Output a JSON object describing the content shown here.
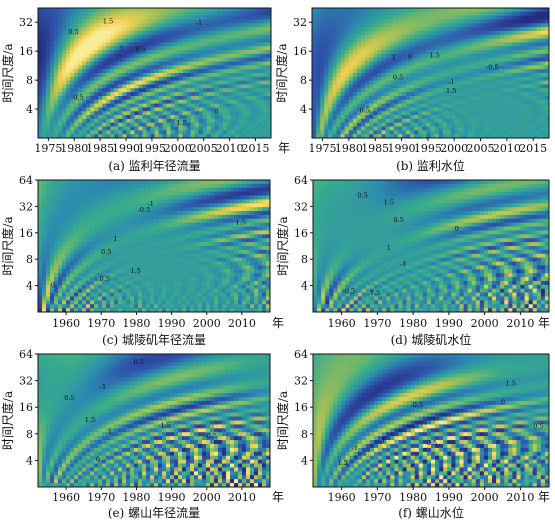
{
  "chart_data": [
    {
      "type": "heatmap",
      "caption": "(a) 监利年径流量",
      "ylabel": "时间尺度/a",
      "xunit": "年",
      "xticks": [
        1975,
        1980,
        1985,
        1990,
        1995,
        2000,
        2005,
        2010,
        2015
      ],
      "yticks": [
        4,
        8,
        16,
        32
      ],
      "xlim": [
        1973,
        2018
      ],
      "ylim": [
        2,
        45
      ],
      "yscale": "log2",
      "contour_labels": [
        "1.5",
        "0.5",
        "0",
        "-0.5",
        "-1",
        "1"
      ],
      "palette": {
        "low": "#2d3c9b",
        "mid": "#3aa98c",
        "high": "#f0d848"
      }
    },
    {
      "type": "heatmap",
      "caption": "(b) 监利水位",
      "ylabel": "时间尺度/a",
      "xunit": "",
      "xticks": [
        1975,
        1980,
        1985,
        1990,
        1995,
        2000,
        2005,
        2010,
        2015
      ],
      "yticks": [
        4,
        8,
        16,
        32
      ],
      "xlim": [
        1973,
        2018
      ],
      "ylim": [
        2,
        45
      ],
      "yscale": "log2",
      "contour_labels": [
        "1.5",
        "0.5",
        "0",
        "-0.5",
        "-1",
        "1"
      ],
      "palette": {
        "low": "#2d3c9b",
        "mid": "#3aa98c",
        "high": "#f0d848"
      }
    },
    {
      "type": "heatmap",
      "caption": "(c) 城陵矶年径流量",
      "ylabel": "时间尺度/a",
      "xunit": "年",
      "xticks": [
        1960,
        1970,
        1980,
        1990,
        2000,
        2010
      ],
      "yticks": [
        4,
        8,
        16,
        32,
        64
      ],
      "xlim": [
        1952,
        2018
      ],
      "ylim": [
        2,
        64
      ],
      "yscale": "log2",
      "contour_labels": [
        "1.5",
        "0.5",
        "0",
        "-0.5",
        "-1",
        "1"
      ],
      "palette": {
        "low": "#2d3c9b",
        "mid": "#3aa98c",
        "high": "#f0d848"
      }
    },
    {
      "type": "heatmap",
      "caption": "(d) 城陵矶水位",
      "ylabel": "时间尺度/a",
      "xunit": "年",
      "xticks": [
        1960,
        1970,
        1980,
        1990,
        2000,
        2010
      ],
      "yticks": [
        4,
        8,
        16,
        32,
        64
      ],
      "xlim": [
        1952,
        2018
      ],
      "ylim": [
        2,
        64
      ],
      "yscale": "log2",
      "contour_labels": [
        "1.5",
        "0.5",
        "0",
        "-0.5",
        "-1",
        "1"
      ],
      "palette": {
        "low": "#2d3c9b",
        "mid": "#3aa98c",
        "high": "#f0d848"
      }
    },
    {
      "type": "heatmap",
      "caption": "(e) 螺山年径流量",
      "ylabel": "时间尺度/a",
      "xunit": "年",
      "xticks": [
        1960,
        1970,
        1980,
        1990,
        2000,
        2010
      ],
      "yticks": [
        4,
        8,
        16,
        32,
        64
      ],
      "xlim": [
        1952,
        2018
      ],
      "ylim": [
        2,
        64
      ],
      "yscale": "log2",
      "contour_labels": [
        "1.5",
        "0.5",
        "0",
        "-0.5",
        "-1",
        "1"
      ],
      "palette": {
        "low": "#2d3c9b",
        "mid": "#3aa98c",
        "high": "#f0d848"
      }
    },
    {
      "type": "heatmap",
      "caption": "(f) 螺山水位",
      "ylabel": "时间尺度/a",
      "xunit": "年",
      "xticks": [
        1960,
        1970,
        1980,
        1990,
        2000,
        2010
      ],
      "yticks": [
        4,
        8,
        16,
        32,
        64
      ],
      "xlim": [
        1952,
        2018
      ],
      "ylim": [
        2,
        64
      ],
      "yscale": "log2",
      "contour_labels": [
        "1.5",
        "0.5",
        "0",
        "-0.5",
        "-1",
        "1"
      ],
      "palette": {
        "low": "#2d3c9b",
        "mid": "#3aa98c",
        "high": "#f0d848"
      }
    }
  ]
}
